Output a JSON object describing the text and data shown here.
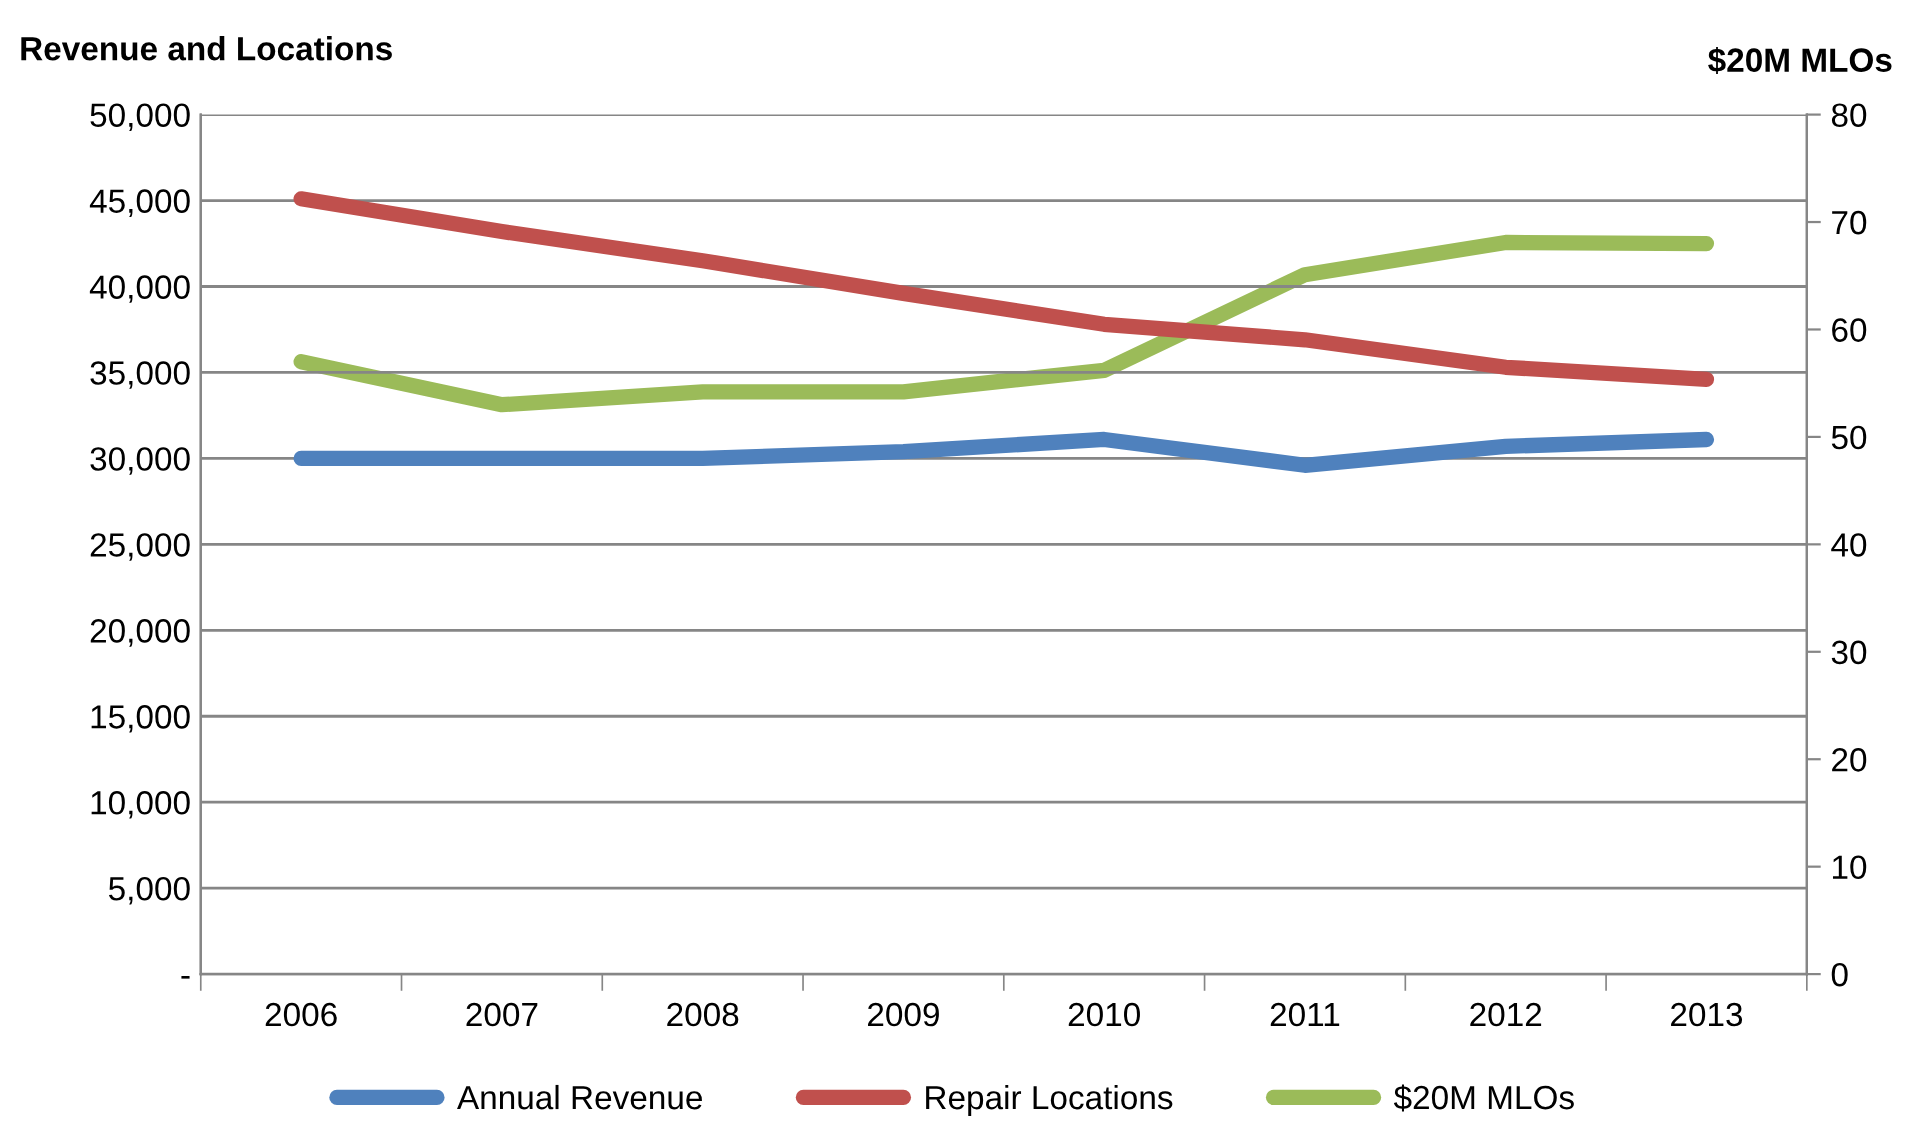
{
  "chart_data": {
    "type": "line",
    "ylabel": "Revenue and Locations",
    "y2label": "$20M MLOs",
    "categories": [
      "2006",
      "2007",
      "2008",
      "2009",
      "2010",
      "2011",
      "2012",
      "2013"
    ],
    "series": [
      {
        "name": "Annual Revenue",
        "color": "#4f81bd",
        "values": [
          30000,
          30000,
          30000,
          30400,
          31100,
          29600,
          30700,
          31100
        ]
      },
      {
        "name": "Repair Locations",
        "color": "#c0504d",
        "values": [
          45100,
          43200,
          41500,
          39600,
          37800,
          36900,
          35300,
          34600
        ]
      },
      {
        "name": "$20M MLOs",
        "color": "#9bbb59",
        "axis": "y2",
        "values": [
          57,
          53,
          54.2,
          54.2,
          56.2,
          65.1,
          68.1,
          68
        ]
      }
    ],
    "ylim": [
      0,
      50000
    ],
    "yticks": [
      {
        "value": 0,
        "label": "-"
      },
      {
        "value": 5000,
        "label": "5,000"
      },
      {
        "value": 10000,
        "label": "10,000"
      },
      {
        "value": 15000,
        "label": "15,000"
      },
      {
        "value": 20000,
        "label": "20,000"
      },
      {
        "value": 25000,
        "label": "25,000"
      },
      {
        "value": 30000,
        "label": "30,000"
      },
      {
        "value": 35000,
        "label": "35,000"
      },
      {
        "value": 40000,
        "label": "40,000"
      },
      {
        "value": 45000,
        "label": "45,000"
      },
      {
        "value": 50000,
        "label": "50,000"
      }
    ],
    "y2lim": [
      0,
      80
    ],
    "y2ticks": [
      0,
      10,
      20,
      30,
      40,
      50,
      60,
      70,
      80
    ],
    "grid": "y",
    "legend": "bottom",
    "marker": "none",
    "line_style": "solid"
  }
}
